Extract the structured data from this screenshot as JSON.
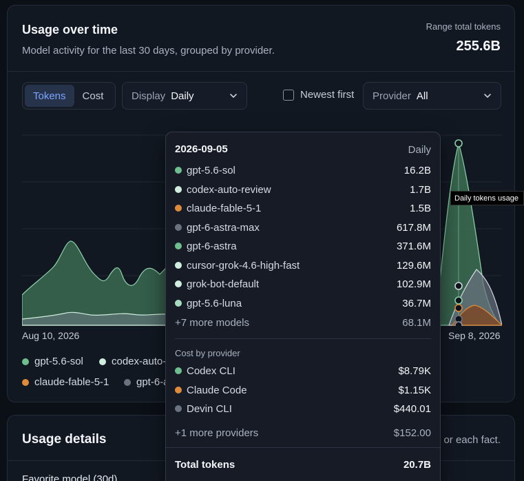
{
  "usage_card": {
    "title": "Usage over time",
    "subtitle": "Model activity for the last 30 days, grouped by provider.",
    "range_label": "Range total tokens",
    "range_value": "255.6B"
  },
  "controls": {
    "metric_tabs": [
      "Tokens",
      "Cost"
    ],
    "active_metric": "Tokens",
    "display_label": "Display",
    "display_value": "Daily",
    "newest_first_label": "Newest first",
    "newest_first_checked": false,
    "provider_label": "Provider",
    "provider_value": "All"
  },
  "chart_data": {
    "type": "area",
    "x_start_label": "Aug 10, 2026",
    "x_end_label": "Sep 8, 2026",
    "tooltip_badge": "Daily tokens usage",
    "series": [
      {
        "name": "gpt-5.6-sol",
        "color": "#6fbf8e"
      },
      {
        "name": "codex-auto-review",
        "color": "#cfeedd"
      },
      {
        "name": "claude-fable-5-1",
        "color": "#e08a3c"
      },
      {
        "name": "gpt-6-astra-max",
        "color": "#6b7280"
      }
    ]
  },
  "legend": [
    {
      "name": "gpt-5.6-sol",
      "color": "#6fbf8e"
    },
    {
      "name": "codex-auto-review",
      "color": "#cfeedd"
    },
    {
      "name": "claude-fable-5-1",
      "color": "#e08a3c"
    },
    {
      "name": "gpt-6-astra-max",
      "color": "#6b7280"
    }
  ],
  "tooltip": {
    "date": "2026-09-05",
    "mode": "Daily",
    "models": [
      {
        "name": "gpt-5.6-sol",
        "value": "16.2B",
        "color": "#6fbf8e"
      },
      {
        "name": "codex-auto-review",
        "value": "1.7B",
        "color": "#cfeedd"
      },
      {
        "name": "claude-fable-5-1",
        "value": "1.5B",
        "color": "#e08a3c"
      },
      {
        "name": "gpt-6-astra-max",
        "value": "617.8M",
        "color": "#6b7280"
      },
      {
        "name": "gpt-6-astra",
        "value": "371.6M",
        "color": "#6fbf8e"
      },
      {
        "name": "cursor-grok-4.6-high-fast",
        "value": "129.6M",
        "color": "#cfeedd"
      },
      {
        "name": "grok-bot-default",
        "value": "102.9M",
        "color": "#cfeedd"
      },
      {
        "name": "gpt-5.6-luna",
        "value": "36.7M",
        "color": "#a5dcc0"
      }
    ],
    "more_models": {
      "name": "+7 more models",
      "value": "68.1M"
    },
    "cost_section": "Cost by provider",
    "providers": [
      {
        "name": "Codex CLI",
        "value": "$8.79K",
        "color": "#6fbf8e"
      },
      {
        "name": "Claude Code",
        "value": "$1.15K",
        "color": "#e08a3c"
      },
      {
        "name": "Devin CLI",
        "value": "$440.01",
        "color": "#6b7280"
      }
    ],
    "more_providers": {
      "name": "+1 more providers",
      "value": "$152.00"
    },
    "total_label": "Total tokens",
    "total_value": "20.7B"
  },
  "details_card": {
    "title": "Usage details",
    "right_text": "or each fact.",
    "favorite_label": "Favorite model (30d)"
  }
}
